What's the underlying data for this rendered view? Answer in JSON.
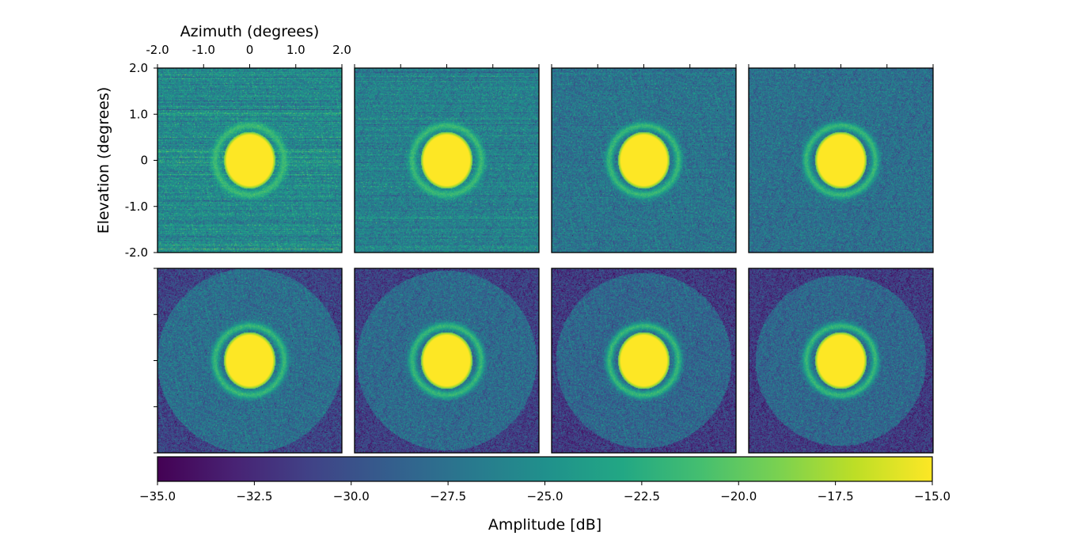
{
  "chart_data": {
    "type": "heatmap",
    "layout": {
      "rows": 2,
      "cols": 4,
      "panels": 8
    },
    "panel": {
      "x_ticks": [
        "-2.0",
        "-1.0",
        "0",
        "1.0",
        "2.0"
      ],
      "y_ticks": [
        "2.0",
        "1.0",
        "0",
        "-1.0",
        "-2.0"
      ],
      "xlabel": "Azimuth (degrees)",
      "ylabel": "Elevation (degrees)",
      "xlim": [
        -2.0,
        2.0
      ],
      "ylim": [
        -2.0,
        2.0
      ]
    },
    "colorbar": {
      "label": "Amplitude [dB]",
      "ticks": [
        "−35.0",
        "−32.5",
        "−30.0",
        "−27.5",
        "−25.0",
        "−22.5",
        "−20.0",
        "−17.5",
        "−15.0"
      ],
      "range": [
        -35.0,
        -15.0
      ],
      "colormap": "viridis"
    },
    "panels": [
      {
        "background_db": -25.5,
        "streaks": 1.0,
        "mask_radius_deg": null
      },
      {
        "background_db": -26.3,
        "streaks": 0.6,
        "mask_radius_deg": null
      },
      {
        "background_db": -27.3,
        "streaks": 0.3,
        "mask_radius_deg": null
      },
      {
        "background_db": -27.6,
        "streaks": 0.15,
        "mask_radius_deg": null
      },
      {
        "background_db": -27.7,
        "streaks": 0.0,
        "mask_radius_deg": 2.0
      },
      {
        "background_db": -28.0,
        "streaks": 0.0,
        "mask_radius_deg": 1.95
      },
      {
        "background_db": -28.3,
        "streaks": 0.0,
        "mask_radius_deg": 1.9
      },
      {
        "background_db": -28.3,
        "streaks": 0.0,
        "mask_radius_deg": 1.85
      }
    ],
    "main_lobe": {
      "radius_az_deg": 0.5,
      "radius_el_deg": 0.55,
      "level_db": -15.0
    },
    "side_ring": {
      "radius_deg": 0.75,
      "level_db": -21.0
    }
  }
}
